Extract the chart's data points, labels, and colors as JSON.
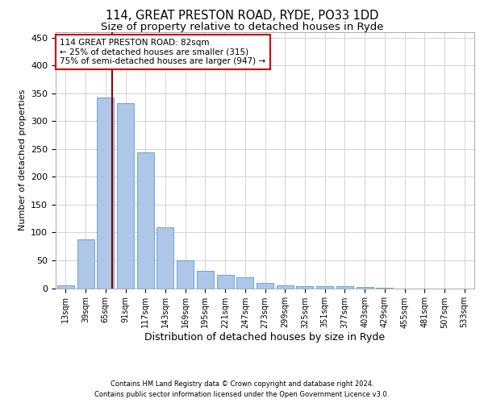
{
  "title1": "114, GREAT PRESTON ROAD, RYDE, PO33 1DD",
  "title2": "Size of property relative to detached houses in Ryde",
  "xlabel": "Distribution of detached houses by size in Ryde",
  "ylabel": "Number of detached properties",
  "footer1": "Contains HM Land Registry data © Crown copyright and database right 2024.",
  "footer2": "Contains public sector information licensed under the Open Government Licence v3.0.",
  "bin_labels": [
    "13sqm",
    "39sqm",
    "65sqm",
    "91sqm",
    "117sqm",
    "143sqm",
    "169sqm",
    "195sqm",
    "221sqm",
    "247sqm",
    "273sqm",
    "299sqm",
    "325sqm",
    "351sqm",
    "377sqm",
    "403sqm",
    "429sqm",
    "455sqm",
    "481sqm",
    "507sqm",
    "533sqm"
  ],
  "bar_values": [
    5,
    88,
    343,
    333,
    244,
    110,
    50,
    31,
    24,
    19,
    9,
    5,
    4,
    4,
    3,
    2,
    1,
    0,
    0,
    0,
    0
  ],
  "bar_color": "#aec6e8",
  "bar_edgecolor": "#5b9bd5",
  "annotation_line1": "114 GREAT PRESTON ROAD: 82sqm",
  "annotation_line2": "← 25% of detached houses are smaller (315)",
  "annotation_line3": "75% of semi-detached houses are larger (947) →",
  "vline_x": 2.35,
  "vline_color": "#8b0000",
  "annotation_box_edgecolor": "#cc0000",
  "annotation_box_facecolor": "#ffffff",
  "ylim": [
    0,
    460
  ],
  "yticks": [
    0,
    50,
    100,
    150,
    200,
    250,
    300,
    350,
    400,
    450
  ],
  "background_color": "#ffffff",
  "grid_color": "#cccccc"
}
